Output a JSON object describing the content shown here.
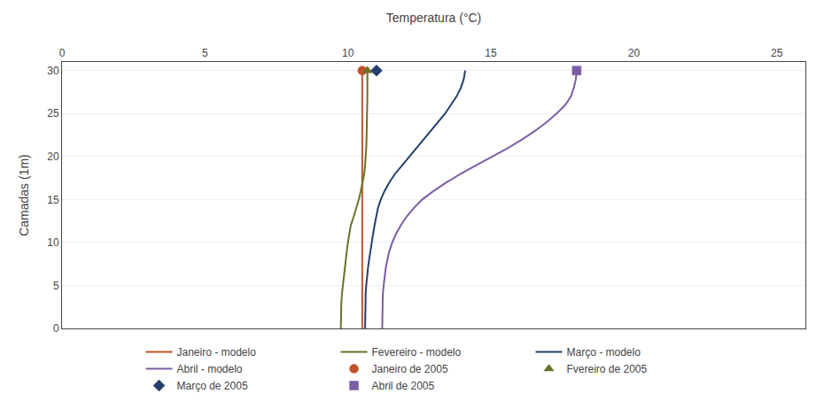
{
  "chart_data": {
    "type": "line",
    "xlabel": "Temperatura (°C)",
    "ylabel": "Camadas (1m)",
    "xlim": [
      0,
      26
    ],
    "ylim": [
      0,
      31
    ],
    "xticks": [
      0,
      5,
      10,
      15,
      20,
      25
    ],
    "yticks": [
      0,
      5,
      10,
      15,
      20,
      25,
      30
    ],
    "grid": "y",
    "legend": "bottom",
    "series": [
      {
        "name": "Janeiro - modelo",
        "type": "line",
        "color": "#c0522a",
        "x": [
          10.5,
          10.5,
          10.5,
          10.5,
          10.5,
          10.5,
          10.5,
          10.5,
          10.5,
          10.5,
          10.5,
          10.5,
          10.5,
          10.5,
          10.5,
          10.5,
          10.5,
          10.5,
          10.5,
          10.5,
          10.5,
          10.5,
          10.5,
          10.5,
          10.5,
          10.5,
          10.5,
          10.5,
          10.5,
          10.5,
          10.5
        ],
        "values": [
          0,
          1,
          2,
          3,
          4,
          5,
          6,
          7,
          8,
          9,
          10,
          11,
          12,
          13,
          14,
          15,
          16,
          17,
          18,
          19,
          20,
          21,
          22,
          23,
          24,
          25,
          26,
          27,
          28,
          29,
          30
        ]
      },
      {
        "name": "Fevereiro - modelo",
        "type": "line",
        "color": "#6b7229",
        "x": [
          9.75,
          9.75,
          9.75,
          9.77,
          9.79,
          9.82,
          9.85,
          9.88,
          9.92,
          9.96,
          10.0,
          10.05,
          10.1,
          10.2,
          10.3,
          10.38,
          10.45,
          10.52,
          10.57,
          10.6,
          10.63,
          10.64,
          10.65,
          10.66,
          10.67,
          10.67,
          10.68,
          10.68,
          10.68,
          10.68,
          10.68
        ],
        "values": [
          0,
          1,
          2,
          3,
          4,
          5,
          6,
          7,
          8,
          9,
          10,
          11,
          12,
          13,
          14,
          15,
          16,
          17,
          18,
          19,
          20,
          21,
          22,
          23,
          24,
          25,
          26,
          27,
          28,
          29,
          30
        ]
      },
      {
        "name": "Março - modelo",
        "type": "line",
        "color": "#243f6b",
        "x": [
          10.6,
          10.6,
          10.6,
          10.6,
          10.62,
          10.64,
          10.66,
          10.7,
          10.74,
          10.78,
          10.83,
          10.88,
          10.93,
          10.98,
          11.05,
          11.15,
          11.28,
          11.45,
          11.65,
          11.9,
          12.15,
          12.4,
          12.65,
          12.9,
          13.15,
          13.4,
          13.6,
          13.8,
          13.95,
          14.05,
          14.1
        ],
        "values": [
          0,
          1,
          2,
          3,
          4,
          5,
          6,
          7,
          8,
          9,
          10,
          11,
          12,
          13,
          14,
          15,
          16,
          17,
          18,
          19,
          20,
          21,
          22,
          23,
          24,
          25,
          26,
          27,
          28,
          29,
          30
        ]
      },
      {
        "name": "Abril - modelo",
        "type": "line",
        "color": "#7b5ea7",
        "x": [
          11.2,
          11.2,
          11.2,
          11.2,
          11.22,
          11.25,
          11.28,
          11.32,
          11.38,
          11.45,
          11.55,
          11.68,
          11.85,
          12.05,
          12.3,
          12.6,
          13.0,
          13.45,
          13.95,
          14.5,
          15.05,
          15.6,
          16.1,
          16.55,
          16.95,
          17.3,
          17.6,
          17.8,
          17.9,
          17.97,
          18.0
        ],
        "values": [
          0,
          1,
          2,
          3,
          4,
          5,
          6,
          7,
          8,
          9,
          10,
          11,
          12,
          13,
          14,
          15,
          16,
          17,
          18,
          19,
          20,
          21,
          22,
          23,
          24,
          25,
          26,
          27,
          28,
          29,
          30
        ]
      },
      {
        "name": "Janeiro de 2005",
        "type": "scatter",
        "marker": "circle",
        "color": "#c0522a",
        "x": [
          10.5
        ],
        "values": [
          30
        ]
      },
      {
        "name": "Fvereiro de 2005",
        "type": "scatter",
        "marker": "triangle-up",
        "color": "#6b7229",
        "x": [
          10.68
        ],
        "values": [
          30
        ]
      },
      {
        "name": "Março de 2005",
        "type": "scatter",
        "marker": "diamond",
        "color": "#243f6b",
        "x": [
          11.0
        ],
        "values": [
          30
        ]
      },
      {
        "name": "Abril de 2005",
        "type": "scatter",
        "marker": "square",
        "color": "#7b5ea7",
        "x": [
          18.0
        ],
        "values": [
          30
        ]
      }
    ]
  }
}
